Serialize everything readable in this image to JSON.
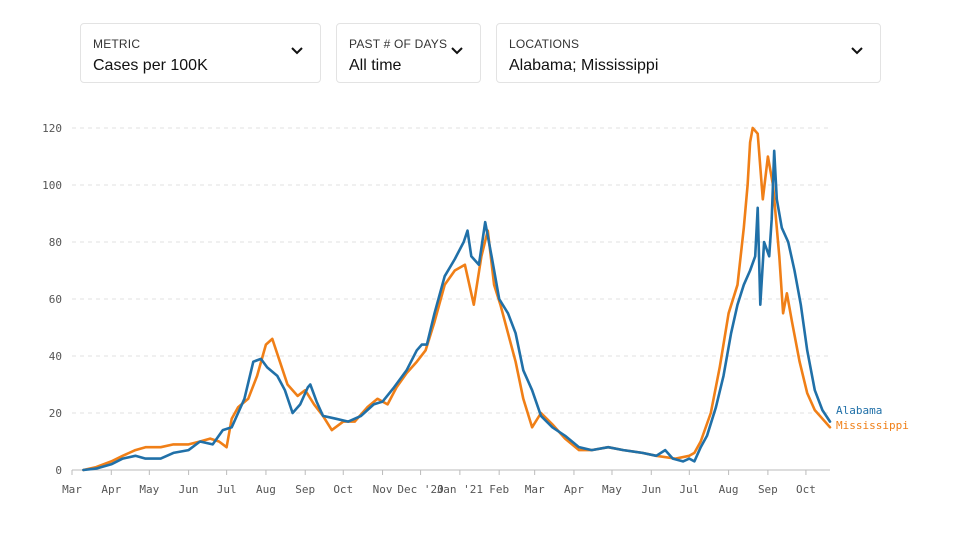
{
  "filters": {
    "metric": {
      "label": "METRIC",
      "value": "Cases per 100K"
    },
    "days": {
      "label": "PAST # OF DAYS",
      "value": "All time"
    },
    "locations": {
      "label": "LOCATIONS",
      "value": "Alabama; Mississippi"
    }
  },
  "icons": {
    "dropdown": "chevron-down-icon"
  },
  "chart_data": {
    "type": "line",
    "title": "",
    "xlabel": "",
    "ylabel": "",
    "x_ticks": [
      "Mar",
      "Apr",
      "May",
      "Jun",
      "Jul",
      "Aug",
      "Sep",
      "Oct",
      "Nov",
      "Dec '20",
      "Jan '21",
      "Feb",
      "Mar",
      "Apr",
      "May",
      "Jun",
      "Jul",
      "Aug",
      "Sep",
      "Oct"
    ],
    "y_ticks": [
      0,
      20,
      40,
      60,
      80,
      100,
      120
    ],
    "ylim": [
      0,
      120
    ],
    "xlim": [
      "2020-03-01",
      "2021-10-20"
    ],
    "grid": "horizontal dashed",
    "legend": "end-of-line labels",
    "series": [
      {
        "name": "Alabama",
        "color": "#2070a8",
        "points": [
          [
            "2020-03-10",
            0
          ],
          [
            "2020-03-20",
            0.5
          ],
          [
            "2020-04-01",
            2
          ],
          [
            "2020-04-10",
            4
          ],
          [
            "2020-04-20",
            5
          ],
          [
            "2020-04-28",
            4
          ],
          [
            "2020-05-10",
            4
          ],
          [
            "2020-05-20",
            6
          ],
          [
            "2020-06-01",
            7
          ],
          [
            "2020-06-10",
            10
          ],
          [
            "2020-06-20",
            9
          ],
          [
            "2020-06-28",
            14
          ],
          [
            "2020-07-05",
            15
          ],
          [
            "2020-07-10",
            20
          ],
          [
            "2020-07-15",
            25
          ],
          [
            "2020-07-22",
            38
          ],
          [
            "2020-07-28",
            39
          ],
          [
            "2020-08-02",
            36
          ],
          [
            "2020-08-10",
            33
          ],
          [
            "2020-08-16",
            28
          ],
          [
            "2020-08-22",
            20
          ],
          [
            "2020-08-28",
            23
          ],
          [
            "2020-09-03",
            29
          ],
          [
            "2020-09-05",
            30
          ],
          [
            "2020-09-10",
            24
          ],
          [
            "2020-09-15",
            19
          ],
          [
            "2020-09-25",
            18
          ],
          [
            "2020-10-05",
            17
          ],
          [
            "2020-10-15",
            19
          ],
          [
            "2020-10-25",
            23
          ],
          [
            "2020-11-01",
            24
          ],
          [
            "2020-11-10",
            29
          ],
          [
            "2020-11-20",
            35
          ],
          [
            "2020-11-28",
            42
          ],
          [
            "2020-12-02",
            44
          ],
          [
            "2020-12-06",
            44
          ],
          [
            "2020-12-12",
            55
          ],
          [
            "2020-12-20",
            68
          ],
          [
            "2020-12-28",
            74
          ],
          [
            "2021-01-04",
            80
          ],
          [
            "2021-01-07",
            84
          ],
          [
            "2021-01-10",
            75
          ],
          [
            "2021-01-16",
            72
          ],
          [
            "2021-01-21",
            87
          ],
          [
            "2021-01-26",
            75
          ],
          [
            "2021-02-01",
            60
          ],
          [
            "2021-02-08",
            55
          ],
          [
            "2021-02-14",
            48
          ],
          [
            "2021-02-20",
            35
          ],
          [
            "2021-02-27",
            28
          ],
          [
            "2021-03-06",
            19
          ],
          [
            "2021-03-15",
            15
          ],
          [
            "2021-03-25",
            12
          ],
          [
            "2021-04-05",
            8
          ],
          [
            "2021-04-15",
            7
          ],
          [
            "2021-04-28",
            8
          ],
          [
            "2021-05-10",
            7
          ],
          [
            "2021-05-25",
            6
          ],
          [
            "2021-06-05",
            5
          ],
          [
            "2021-06-12",
            7
          ],
          [
            "2021-06-18",
            4
          ],
          [
            "2021-06-26",
            3
          ],
          [
            "2021-07-01",
            4
          ],
          [
            "2021-07-05",
            3
          ],
          [
            "2021-07-10",
            8
          ],
          [
            "2021-07-15",
            12
          ],
          [
            "2021-07-22",
            22
          ],
          [
            "2021-07-28",
            33
          ],
          [
            "2021-08-03",
            48
          ],
          [
            "2021-08-08",
            58
          ],
          [
            "2021-08-13",
            65
          ],
          [
            "2021-08-18",
            70
          ],
          [
            "2021-08-22",
            75
          ],
          [
            "2021-08-24",
            92
          ],
          [
            "2021-08-26",
            58
          ],
          [
            "2021-08-29",
            80
          ],
          [
            "2021-09-02",
            75
          ],
          [
            "2021-09-04",
            88
          ],
          [
            "2021-09-06",
            112
          ],
          [
            "2021-09-08",
            95
          ],
          [
            "2021-09-12",
            85
          ],
          [
            "2021-09-17",
            80
          ],
          [
            "2021-09-22",
            70
          ],
          [
            "2021-09-27",
            58
          ],
          [
            "2021-10-02",
            42
          ],
          [
            "2021-10-08",
            28
          ],
          [
            "2021-10-14",
            21
          ],
          [
            "2021-10-20",
            17
          ]
        ]
      },
      {
        "name": "Mississippi",
        "color": "#f07f17",
        "points": [
          [
            "2020-03-10",
            0
          ],
          [
            "2020-03-20",
            1
          ],
          [
            "2020-04-01",
            3
          ],
          [
            "2020-04-10",
            5
          ],
          [
            "2020-04-20",
            7
          ],
          [
            "2020-04-28",
            8
          ],
          [
            "2020-05-10",
            8
          ],
          [
            "2020-05-20",
            9
          ],
          [
            "2020-06-01",
            9
          ],
          [
            "2020-06-10",
            10
          ],
          [
            "2020-06-18",
            11
          ],
          [
            "2020-06-25",
            10
          ],
          [
            "2020-07-01",
            8
          ],
          [
            "2020-07-05",
            18
          ],
          [
            "2020-07-10",
            22
          ],
          [
            "2020-07-18",
            25
          ],
          [
            "2020-07-25",
            33
          ],
          [
            "2020-08-01",
            44
          ],
          [
            "2020-08-06",
            46
          ],
          [
            "2020-08-12",
            38
          ],
          [
            "2020-08-18",
            30
          ],
          [
            "2020-08-26",
            26
          ],
          [
            "2020-09-01",
            28
          ],
          [
            "2020-09-08",
            23
          ],
          [
            "2020-09-15",
            19
          ],
          [
            "2020-09-22",
            14
          ],
          [
            "2020-10-01",
            17
          ],
          [
            "2020-10-10",
            17
          ],
          [
            "2020-10-20",
            22
          ],
          [
            "2020-10-28",
            25
          ],
          [
            "2020-11-05",
            23
          ],
          [
            "2020-11-12",
            29
          ],
          [
            "2020-11-20",
            34
          ],
          [
            "2020-11-28",
            38
          ],
          [
            "2020-12-05",
            42
          ],
          [
            "2020-12-12",
            52
          ],
          [
            "2020-12-20",
            65
          ],
          [
            "2020-12-28",
            70
          ],
          [
            "2021-01-05",
            72
          ],
          [
            "2021-01-12",
            58
          ],
          [
            "2021-01-18",
            75
          ],
          [
            "2021-01-23",
            84
          ],
          [
            "2021-01-28",
            65
          ],
          [
            "2021-02-02",
            58
          ],
          [
            "2021-02-08",
            48
          ],
          [
            "2021-02-14",
            38
          ],
          [
            "2021-02-20",
            25
          ],
          [
            "2021-02-27",
            15
          ],
          [
            "2021-03-06",
            20
          ],
          [
            "2021-03-15",
            16
          ],
          [
            "2021-03-25",
            11
          ],
          [
            "2021-04-05",
            7
          ],
          [
            "2021-04-15",
            7
          ],
          [
            "2021-04-28",
            8
          ],
          [
            "2021-05-10",
            7
          ],
          [
            "2021-05-25",
            6
          ],
          [
            "2021-06-05",
            5
          ],
          [
            "2021-06-20",
            4
          ],
          [
            "2021-07-01",
            5
          ],
          [
            "2021-07-05",
            6
          ],
          [
            "2021-07-10",
            10
          ],
          [
            "2021-07-18",
            20
          ],
          [
            "2021-07-25",
            36
          ],
          [
            "2021-08-01",
            55
          ],
          [
            "2021-08-08",
            65
          ],
          [
            "2021-08-13",
            85
          ],
          [
            "2021-08-16",
            100
          ],
          [
            "2021-08-18",
            115
          ],
          [
            "2021-08-20",
            120
          ],
          [
            "2021-08-24",
            118
          ],
          [
            "2021-08-28",
            95
          ],
          [
            "2021-09-01",
            110
          ],
          [
            "2021-09-05",
            100
          ],
          [
            "2021-09-10",
            75
          ],
          [
            "2021-09-13",
            55
          ],
          [
            "2021-09-16",
            62
          ],
          [
            "2021-09-20",
            52
          ],
          [
            "2021-09-26",
            38
          ],
          [
            "2021-10-02",
            27
          ],
          [
            "2021-10-08",
            21
          ],
          [
            "2021-10-14",
            18
          ],
          [
            "2021-10-20",
            15
          ]
        ]
      }
    ]
  }
}
